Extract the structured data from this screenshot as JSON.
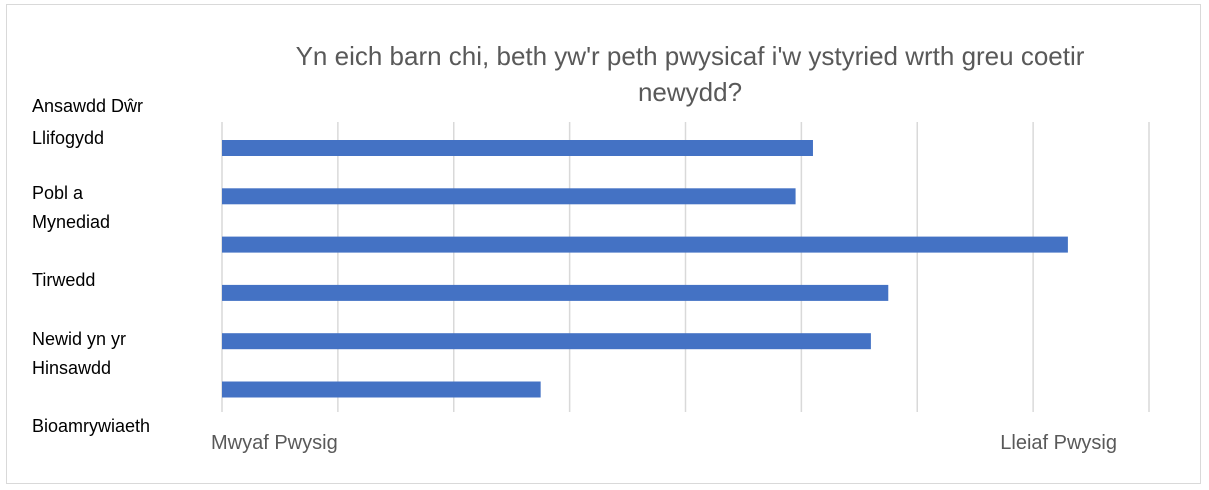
{
  "chart_data": {
    "type": "bar",
    "orientation": "horizontal",
    "title": "Yn eich barn chi, beth yw'r peth pwysicaf i'w ystyried wrth greu coetir newydd?",
    "title_lines": [
      "Yn eich barn chi, beth yw'r peth pwysicaf i'w ystyried wrth greu coetir",
      "newydd?"
    ],
    "category_labels": [
      "Ansawdd Dŵr",
      "Llifogydd",
      "Pobl a Mynediad",
      "Tirwedd",
      "Newid yn yr Hinsawdd",
      "Bioamrywiaeth"
    ],
    "category_label_lines": [
      [
        "Ansawdd Dŵr"
      ],
      [
        "Llifogydd"
      ],
      [
        "Pobl a",
        "Mynediad"
      ],
      [
        "Tirwedd"
      ],
      [
        "Newid yn yr",
        "Hinsawdd"
      ],
      [
        "Bioamrywiaeth"
      ]
    ],
    "values": [
      5.1,
      4.95,
      7.3,
      5.75,
      5.6,
      2.75
    ],
    "xlim": [
      0,
      8
    ],
    "x_axis_start_label": "Mwyaf Pwysig",
    "x_axis_end_label": "Lleiaf Pwysig",
    "grid": true,
    "legend": "none",
    "bar_color": "#4472c4",
    "grid_color": "#d9d9d9"
  }
}
